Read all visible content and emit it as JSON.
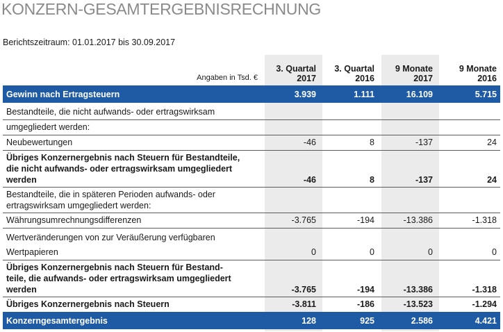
{
  "title": "KONZERN-GESAMTERGEBNISRECHNUNG",
  "period": "Berichtszeitraum: 01.01.2017 bis 30.09.2017",
  "header": {
    "unit_label": "Angaben in Tsd. €",
    "columns": [
      {
        "line1": "3. Quartal",
        "line2": "2017"
      },
      {
        "line1": "3. Quartal",
        "line2": "2016"
      },
      {
        "line1": "9 Monate",
        "line2": "2017"
      },
      {
        "line1": "9 Monate",
        "line2": "2016"
      }
    ]
  },
  "rows": {
    "gewinn": {
      "label": "Gewinn nach Ertragsteuern",
      "values": [
        "3.939",
        "1.111",
        "16.109",
        "5.715"
      ]
    },
    "bestand_nicht_1": {
      "label": "Bestandteile, die nicht aufwands- oder ertragswirksam"
    },
    "bestand_nicht_2": {
      "label": "umgegliedert werden:"
    },
    "neubewertungen": {
      "label": "Neubewertungen",
      "values": [
        "-46",
        "8",
        "-137",
        "24"
      ]
    },
    "uebrig_nicht": {
      "label_1": "Übriges Konzernergebnis nach Steuern für Bestandteile,",
      "label_2": "die nicht aufwands- oder ertragswirksam umgegliedert",
      "label_3": "werden",
      "values": [
        "-46",
        "8",
        "-137",
        "24"
      ]
    },
    "bestand_spaeter": {
      "label_1": "Bestandteile, die in späteren Perioden aufwands- oder",
      "label_2": "ertragswirksam umgegliedert werden:"
    },
    "waehrung": {
      "label": "Währungsumrechnungsdifferenzen",
      "values": [
        "-3.765",
        "-194",
        "-13.386",
        "-1.318"
      ]
    },
    "wertveraenderungen_1": {
      "label": "Wertveränderungen von zur Veräußerung verfügbaren"
    },
    "wertpapiere": {
      "label": "Wertpapieren",
      "values": [
        "0",
        "0",
        "0",
        "0"
      ]
    },
    "uebrig_bestand": {
      "label_1": "Übriges Konzernergebnis nach Steuern für Bestand-",
      "label_2": "teile, die aufwands- oder ertragswirksam umgegliedert",
      "label_3": "werden",
      "values": [
        "-3.765",
        "-194",
        "-13.386",
        "-1.318"
      ]
    },
    "uebrig_gesamt": {
      "label": "Übriges Konzernergebnis nach Steuern",
      "values": [
        "-3.811",
        "-186",
        "-13.523",
        "-1.294"
      ]
    },
    "gesamt": {
      "label": "Konzerngesamtergebnis",
      "values": [
        "128",
        "925",
        "2.586",
        "4.421"
      ]
    }
  }
}
